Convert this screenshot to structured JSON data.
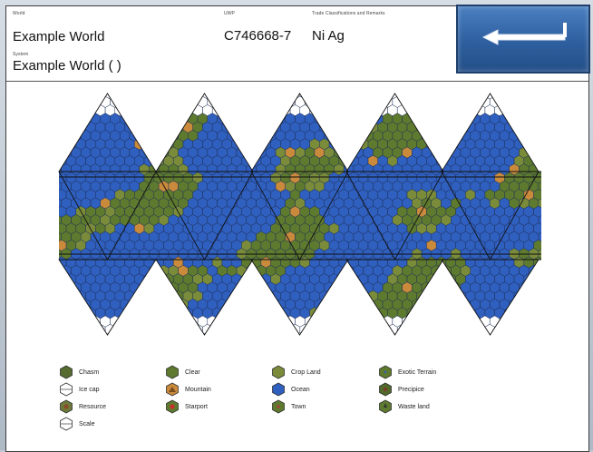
{
  "header": {
    "world_label": "World",
    "world_name": "Example World",
    "system_label": "System",
    "system_name": "Example World ( )",
    "uwp_label": "UWP",
    "uwp_value": "C746668-7",
    "trade_label": "Trade Classifications and Remarks",
    "trade_value": "Ni Ag"
  },
  "back_button": {
    "icon": "arrow-left-icon"
  },
  "colors": {
    "ocean": "#2f5fbf",
    "land": "#5e7a2e",
    "mountain": "#c98a3c",
    "chasm": "#556b2f",
    "resource": "#6d7a3a",
    "crop": "#7a8c3a",
    "precipice": "#4f6a2a",
    "ice": "#ffffff"
  },
  "legend": [
    {
      "label": "Chasm",
      "icon": "chasm-icon"
    },
    {
      "label": "Clear",
      "icon": "clear-icon"
    },
    {
      "label": "Crop Land",
      "icon": "crop-land-icon"
    },
    {
      "label": "Exotic Terrain",
      "icon": "exotic-terrain-icon"
    },
    {
      "label": "Ice cap",
      "icon": "ice-cap-icon"
    },
    {
      "label": "Mountain",
      "icon": "mountain-icon"
    },
    {
      "label": "Ocean",
      "icon": "ocean-icon"
    },
    {
      "label": "Precipice",
      "icon": "precipice-icon"
    },
    {
      "label": "Resource",
      "icon": "resource-icon"
    },
    {
      "label": "Starport",
      "icon": "starport-icon"
    },
    {
      "label": "Town",
      "icon": "town-icon"
    },
    {
      "label": "Waste land",
      "icon": "waste-land-icon"
    },
    {
      "label": "Scale",
      "icon": "scale-icon"
    }
  ]
}
